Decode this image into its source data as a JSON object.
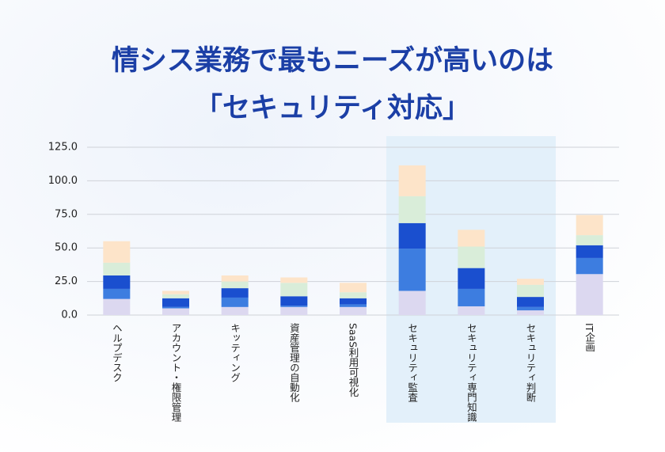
{
  "chart_data": {
    "type": "stacked_bar",
    "title": [
      "情シス業務で最もニーズが高いのは",
      "「セキュリティ対応」"
    ],
    "categories": [
      "ヘルプデスク",
      "アカウント・権限管理",
      "キッティング",
      "資産管理の自動化",
      "SaaS利用可視化",
      "セキュリティ監査",
      "セキュリティ専門知識",
      "セキュリティ判断",
      "IT企画"
    ],
    "series": [
      {
        "color": "#dcd8f0",
        "values": [
          12,
          5,
          6,
          6,
          6,
          18,
          6.5,
          3.5,
          30.5
        ]
      },
      {
        "color": "#3d7de0",
        "values": [
          7.5,
          1,
          7,
          1,
          2,
          31.5,
          13,
          2.5,
          12
        ]
      },
      {
        "color": "#1a4fcf",
        "values": [
          10,
          6.5,
          7,
          7,
          4.5,
          19,
          15.5,
          7.5,
          9.5
        ]
      },
      {
        "color": "#d9edd9",
        "values": [
          9.5,
          3,
          5,
          10,
          4.5,
          20,
          16,
          9,
          7.5
        ]
      },
      {
        "color": "#fde4c9",
        "values": [
          16,
          2.5,
          4.5,
          4,
          7,
          23,
          12.5,
          4.5,
          15
        ]
      }
    ],
    "ylim": [
      0,
      125
    ],
    "yticks": [
      {
        "value": 0,
        "label": "0.0"
      },
      {
        "value": 25,
        "label": "25.0"
      },
      {
        "value": 50,
        "label": "50.0"
      },
      {
        "value": 75,
        "label": "75.0"
      },
      {
        "value": 100,
        "label": "100.0"
      },
      {
        "value": 125,
        "label": "125.0"
      }
    ],
    "grid": true
  }
}
